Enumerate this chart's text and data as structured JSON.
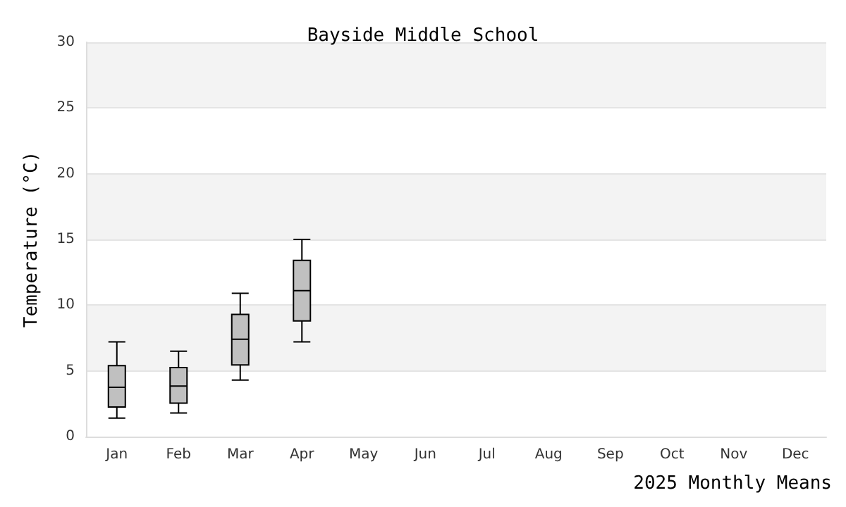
{
  "chart_data": {
    "type": "box",
    "title": "Bayside Middle School",
    "xlabel": "2025 Monthly Means",
    "ylabel": "Temperature (°C)",
    "categories": [
      "Jan",
      "Feb",
      "Mar",
      "Apr",
      "May",
      "Jun",
      "Jul",
      "Aug",
      "Sep",
      "Oct",
      "Nov",
      "Dec"
    ],
    "series": [
      {
        "color": "#c0c0c0",
        "boxes": [
          {
            "low": 1.4,
            "q1": 2.25,
            "median": 3.75,
            "q3": 5.4,
            "high": 7.2
          },
          {
            "low": 1.8,
            "q1": 2.55,
            "median": 3.85,
            "q3": 5.25,
            "high": 6.5
          },
          {
            "low": 4.3,
            "q1": 5.45,
            "median": 7.4,
            "q3": 9.3,
            "high": 10.9
          },
          {
            "low": 7.2,
            "q1": 8.8,
            "median": 11.1,
            "q3": 13.4,
            "high": 15.0
          },
          null,
          null,
          null,
          null,
          null,
          null,
          null,
          null
        ]
      }
    ],
    "ylim": [
      0,
      30
    ],
    "yticks": [
      0,
      5,
      10,
      15,
      20,
      25,
      30
    ],
    "grid": "y"
  }
}
